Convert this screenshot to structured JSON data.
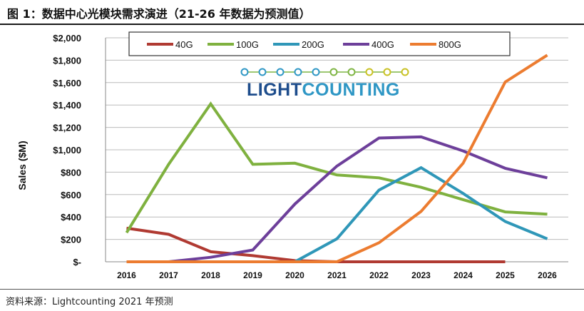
{
  "header": {
    "title": "图 1：数据中心光模块需求演进（21-26 年数据为预测值）"
  },
  "footer": {
    "source": "资料来源：Lightcounting 2021 年预测"
  },
  "logo": {
    "light": "LIGHT",
    "counting": "COUNTING",
    "light_color": "#1e4d8c",
    "counting_color": "#2f97c5",
    "dot_colors": [
      "#2f97c5",
      "#2f97c5",
      "#2f97c5",
      "#2f97c5",
      "#2f97c5",
      "#7fb544",
      "#7fb544",
      "#c9c224",
      "#c9c224",
      "#c9c224"
    ]
  },
  "chart_data": {
    "type": "line",
    "ylabel": "Sales ($M)",
    "xlabel": "",
    "x": [
      "2016",
      "2017",
      "2018",
      "2019",
      "2020",
      "2021",
      "2022",
      "2023",
      "2024",
      "2025",
      "2026"
    ],
    "ylim": [
      0,
      2000
    ],
    "yticks": [
      0,
      200,
      400,
      600,
      800,
      1000,
      1200,
      1400,
      1600,
      1800,
      2000
    ],
    "ytick_labels": [
      "$-",
      "$200",
      "$400",
      "$600",
      "$800",
      "$1,000",
      "$1,200",
      "$1,400",
      "$1,600",
      "$1,800",
      "$2,000"
    ],
    "grid": true,
    "legend_position": "top",
    "series": [
      {
        "name": "40G",
        "color": "#b03a32",
        "values": [
          300,
          245,
          90,
          55,
          10,
          0,
          0,
          0,
          0,
          0,
          null
        ]
      },
      {
        "name": "100G",
        "color": "#7fb13f",
        "values": [
          260,
          870,
          1410,
          870,
          880,
          775,
          750,
          665,
          555,
          445,
          425
        ]
      },
      {
        "name": "200G",
        "color": "#2f97b8",
        "values": [
          null,
          null,
          null,
          null,
          0,
          205,
          640,
          840,
          610,
          360,
          205
        ]
      },
      {
        "name": "400G",
        "color": "#6d3f9a",
        "values": [
          0,
          0,
          40,
          105,
          515,
          855,
          1105,
          1115,
          990,
          835,
          750
        ]
      },
      {
        "name": "800G",
        "color": "#ec7c30",
        "values": [
          0,
          0,
          0,
          0,
          0,
          0,
          170,
          450,
          880,
          1605,
          1845
        ]
      }
    ]
  }
}
